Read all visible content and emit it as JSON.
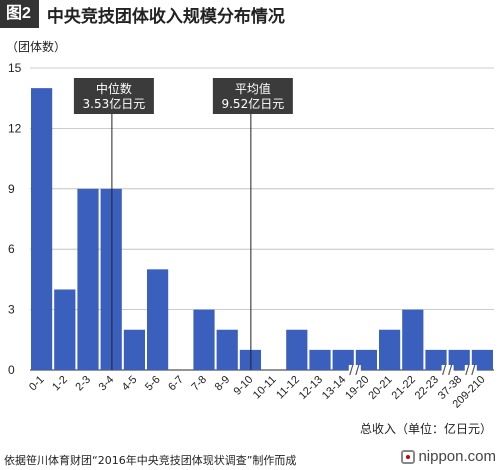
{
  "header": {
    "fig_badge": "图2",
    "title": "中央竞技团体收入规模分布情况"
  },
  "unit_label": "（团体数）",
  "footer": {
    "source": "依据笹川体育财团“2016年中央竞技团体现状调查”制作而成",
    "brand": "nippon.com"
  },
  "colors": {
    "bar": "#3a5fbd",
    "annotation_bg": "#3b3b3b",
    "grid": "#bbbbbb",
    "axis": "#555555"
  },
  "chart_data": {
    "type": "bar",
    "title": "中央竞技团体收入规模分布情况",
    "xlabel": "总收入（单位：亿日元）",
    "ylabel": "（团体数）",
    "ylim": [
      0,
      15
    ],
    "yticks": [
      0,
      3,
      6,
      9,
      12,
      15
    ],
    "grid": true,
    "categories": [
      "0-1",
      "1-2",
      "2-3",
      "3-4",
      "4-5",
      "5-6",
      "6-7",
      "7-8",
      "8-9",
      "9-10",
      "10-11",
      "11-12",
      "12-13",
      "13-14",
      "19-20",
      "20-21",
      "21-22",
      "22-23",
      "37-38",
      "209-210"
    ],
    "values": [
      14,
      4,
      9,
      9,
      2,
      5,
      0,
      3,
      2,
      1,
      0,
      2,
      1,
      1,
      1,
      2,
      3,
      1,
      1,
      1
    ],
    "axis_breaks_after": [
      "13-14",
      "22-23",
      "37-38"
    ],
    "annotations": [
      {
        "label_line1": "中位数",
        "label_line2": "3.53亿日元",
        "x_value": 3.53
      },
      {
        "label_line1": "平均值",
        "label_line2": "9.52亿日元",
        "x_value": 9.52
      }
    ]
  }
}
